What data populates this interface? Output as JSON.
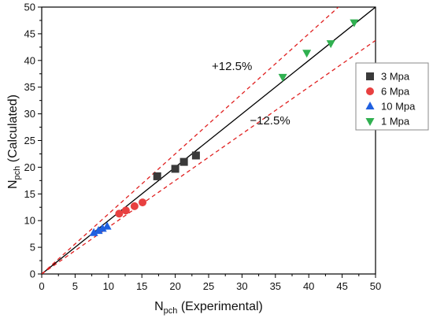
{
  "chart_data": {
    "type": "scatter",
    "title": "",
    "xlabel": {
      "main": "N",
      "sub": "pch",
      "rest": " (Experimental)"
    },
    "ylabel": {
      "main": "N",
      "sub": "pch",
      "rest": " (Calculated)"
    },
    "xlim": [
      0,
      50
    ],
    "ylim": [
      0,
      50
    ],
    "xticks": [
      0,
      5,
      10,
      15,
      20,
      25,
      30,
      35,
      40,
      45,
      50
    ],
    "yticks": [
      0,
      5,
      10,
      15,
      20,
      25,
      30,
      35,
      40,
      45,
      50
    ],
    "grid": false,
    "legend_position": "right",
    "reference_lines": [
      {
        "label": "",
        "slope": 1.0,
        "style": "solid",
        "color": "#000000"
      },
      {
        "label": "+12.5%",
        "slope": 1.125,
        "style": "dashed",
        "color": "#e02020"
      },
      {
        "label": "−12.5%",
        "slope": 0.875,
        "style": "dashed",
        "color": "#e02020"
      }
    ],
    "annotations": [
      {
        "text": "+12.5%",
        "x": 28.5,
        "y": 38.2
      },
      {
        "text": "−12.5%",
        "x": 34.2,
        "y": 28.0
      }
    ],
    "series": [
      {
        "name": "3 Mpa",
        "marker": "square",
        "color": "#3a3a3a",
        "points": [
          [
            17.3,
            18.3
          ],
          [
            20.0,
            19.7
          ],
          [
            21.3,
            21.0
          ],
          [
            23.1,
            22.2
          ]
        ]
      },
      {
        "name": "6 Mpa",
        "marker": "circle",
        "color": "#e84040",
        "points": [
          [
            11.6,
            11.3
          ],
          [
            12.6,
            11.9
          ],
          [
            13.9,
            12.7
          ],
          [
            15.1,
            13.4
          ]
        ]
      },
      {
        "name": "10 Mpa",
        "marker": "triangle-up",
        "color": "#2060e0",
        "points": [
          [
            7.8,
            7.7
          ],
          [
            8.5,
            8.1
          ],
          [
            9.1,
            8.5
          ],
          [
            9.8,
            8.9
          ]
        ]
      },
      {
        "name": "1 Mpa",
        "marker": "triangle-down",
        "color": "#30b050",
        "points": [
          [
            36.1,
            36.9
          ],
          [
            39.7,
            41.4
          ],
          [
            43.3,
            43.2
          ],
          [
            46.8,
            47.1
          ]
        ]
      }
    ]
  }
}
